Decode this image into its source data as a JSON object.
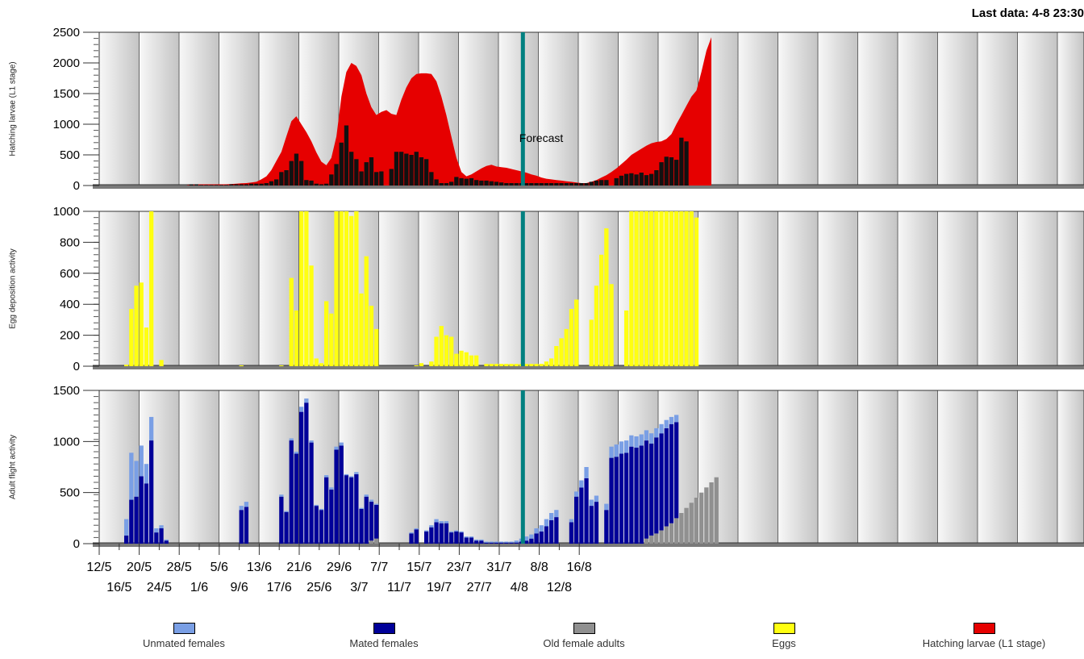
{
  "header": {
    "last_data": "Last data: 4-8 23:30"
  },
  "colors": {
    "unmated": "#7a9fe5",
    "mated": "#000099",
    "old": "#909090",
    "eggs": "#ffff11",
    "larvae_area": "#e60000",
    "larvae_bars": "#111111",
    "forecast_line": "#008080"
  },
  "legend": [
    {
      "label": "Unmated females",
      "color": "#7a9fe5"
    },
    {
      "label": "Mated females",
      "color": "#000099"
    },
    {
      "label": "Old female adults",
      "color": "#909090"
    },
    {
      "label": "Eggs",
      "color": "#ffff11"
    },
    {
      "label": "Hatching larvae (L1 stage)",
      "color": "#e60000"
    }
  ],
  "chart_data": [
    {
      "type": "area",
      "ylabel": "Hatching larvae (L1 stage)",
      "ylim": [
        0,
        2500
      ],
      "yticks": [
        "0",
        "500",
        "1000",
        "1500",
        "2000",
        "2500"
      ],
      "annotation": {
        "label": "Forecast",
        "date": "4/8"
      },
      "x_start": "12/5",
      "area_series": [
        0,
        0,
        0,
        0,
        0,
        0,
        0,
        0,
        0,
        0,
        0,
        0,
        0,
        0,
        0,
        0,
        0,
        0,
        20,
        20,
        20,
        20,
        20,
        20,
        20,
        20,
        25,
        30,
        35,
        40,
        50,
        60,
        100,
        150,
        250,
        400,
        550,
        800,
        1050,
        1130,
        1000,
        870,
        720,
        540,
        390,
        330,
        450,
        800,
        1450,
        1850,
        2000,
        1950,
        1800,
        1500,
        1280,
        1150,
        1200,
        1230,
        1170,
        1150,
        1400,
        1600,
        1750,
        1820,
        1830,
        1830,
        1820,
        1700,
        1450,
        1150,
        800,
        450,
        220,
        150,
        180,
        230,
        280,
        320,
        340,
        310,
        300,
        290,
        270,
        250,
        230,
        210,
        180,
        160,
        130,
        110,
        100,
        90,
        80,
        70,
        60,
        50,
        40,
        40,
        60,
        90,
        130,
        170,
        220,
        280,
        350,
        420,
        500,
        550,
        600,
        650,
        690,
        710,
        720,
        760,
        840,
        1000,
        1150,
        1300,
        1450,
        1550,
        1850,
        2200,
        2420
      ],
      "bar_values": [
        0,
        0,
        0,
        0,
        0,
        0,
        0,
        0,
        0,
        0,
        0,
        0,
        0,
        0,
        0,
        0,
        0,
        0,
        20,
        20,
        10,
        10,
        10,
        10,
        10,
        10,
        20,
        20,
        20,
        20,
        30,
        30,
        30,
        40,
        70,
        100,
        220,
        250,
        400,
        520,
        400,
        90,
        80,
        30,
        20,
        30,
        180,
        350,
        700,
        980,
        550,
        430,
        230,
        380,
        460,
        220,
        230,
        0,
        270,
        550,
        550,
        520,
        500,
        550,
        460,
        430,
        220,
        100,
        40,
        40,
        60,
        140,
        120,
        110,
        120,
        90,
        80,
        80,
        70,
        60,
        50,
        40,
        40,
        40,
        40,
        40,
        40,
        40,
        40,
        40,
        40,
        40,
        40,
        40,
        40,
        40,
        40,
        40,
        60,
        80,
        90,
        90,
        0,
        120,
        160,
        190,
        200,
        180,
        210,
        170,
        190,
        250,
        380,
        470,
        460,
        420,
        780,
        720
      ]
    },
    {
      "type": "bar",
      "ylabel": "Egg deposition activity",
      "ylim": [
        0,
        1000
      ],
      "yticks": [
        "0",
        "200",
        "400",
        "600",
        "800",
        "1000"
      ],
      "x_start": "12/5",
      "values": [
        0,
        0,
        0,
        0,
        0,
        10,
        370,
        520,
        540,
        250,
        1000,
        0,
        40,
        0,
        0,
        0,
        0,
        0,
        0,
        0,
        0,
        0,
        0,
        0,
        0,
        0,
        0,
        0,
        5,
        0,
        0,
        0,
        0,
        0,
        0,
        0,
        5,
        0,
        570,
        360,
        1000,
        1000,
        650,
        50,
        20,
        420,
        340,
        1000,
        1000,
        1000,
        970,
        1000,
        470,
        710,
        390,
        240,
        0,
        0,
        0,
        0,
        0,
        0,
        0,
        5,
        20,
        0,
        30,
        190,
        260,
        200,
        190,
        80,
        100,
        90,
        70,
        70,
        0,
        15,
        15,
        15,
        15,
        15,
        15,
        15,
        15,
        15,
        15,
        15,
        15,
        30,
        50,
        130,
        180,
        240,
        370,
        430,
        0,
        0,
        300,
        520,
        720,
        890,
        530,
        0,
        0,
        360,
        1000,
        1000,
        1000,
        1000,
        1000,
        1000,
        1000,
        1000,
        1000,
        1000,
        1000,
        1000,
        1000,
        960
      ]
    },
    {
      "type": "bar",
      "ylabel": "Adult flight activity",
      "ylim": [
        0,
        1500
      ],
      "yticks": [
        "0",
        "500",
        "1000",
        "1500"
      ],
      "x_ticks_row1": [
        "12/5",
        "20/5",
        "28/5",
        "5/6",
        "13/6",
        "21/6",
        "29/6",
        "7/7",
        "15/7",
        "23/7",
        "31/7",
        "8/8",
        "16/8"
      ],
      "x_ticks_row2": [
        "16/5",
        "24/5",
        "1/6",
        "9/6",
        "17/6",
        "25/6",
        "3/7",
        "11/7",
        "19/7",
        "27/7",
        "4/8",
        "12/8"
      ],
      "x_start": "12/5",
      "forecast_start": "4/8",
      "series": [
        {
          "name": "Old female adults",
          "values": [
            0,
            0,
            0,
            0,
            0,
            0,
            0,
            0,
            0,
            0,
            0,
            0,
            0,
            0,
            0,
            0,
            0,
            0,
            0,
            0,
            0,
            0,
            0,
            0,
            0,
            0,
            0,
            0,
            0,
            0,
            0,
            0,
            0,
            0,
            0,
            0,
            0,
            0,
            0,
            0,
            0,
            0,
            0,
            0,
            0,
            0,
            0,
            0,
            0,
            0,
            0,
            0,
            0,
            0,
            30,
            50,
            0,
            0,
            0,
            0,
            0,
            0,
            0,
            0,
            0,
            0,
            0,
            0,
            0,
            0,
            0,
            0,
            0,
            0,
            0,
            0,
            0,
            0,
            0,
            0,
            0,
            0,
            0,
            0,
            0,
            0,
            0,
            0,
            0,
            0,
            0,
            0,
            0,
            0,
            0,
            0,
            0,
            0,
            0,
            0,
            0,
            0,
            0,
            0,
            0,
            0,
            0,
            0,
            0,
            50,
            80,
            100,
            130,
            170,
            200,
            250,
            300,
            350,
            400,
            450,
            500,
            550,
            600,
            650
          ]
        },
        {
          "name": "Mated females",
          "values": [
            0,
            0,
            0,
            0,
            0,
            80,
            430,
            460,
            660,
            590,
            1010,
            110,
            150,
            30,
            0,
            0,
            0,
            0,
            0,
            0,
            0,
            0,
            0,
            0,
            0,
            0,
            0,
            0,
            330,
            360,
            0,
            0,
            0,
            0,
            0,
            0,
            460,
            310,
            1010,
            880,
            1290,
            1380,
            990,
            370,
            330,
            650,
            530,
            920,
            960,
            670,
            650,
            680,
            340,
            460,
            380,
            330,
            0,
            0,
            0,
            0,
            0,
            0,
            100,
            140,
            0,
            120,
            160,
            210,
            200,
            200,
            110,
            120,
            110,
            60,
            60,
            30,
            30,
            10,
            10,
            10,
            10,
            10,
            10,
            10,
            20,
            30,
            50,
            100,
            120,
            170,
            230,
            260,
            0,
            0,
            210,
            460,
            550,
            640,
            370,
            410,
            0,
            330,
            840,
            850,
            880,
            890,
            950,
            940,
            960,
            960,
            900,
            940,
            950,
            960,
            970,
            940
          ]
        },
        {
          "name": "Unmated females",
          "values": [
            0,
            0,
            0,
            0,
            0,
            160,
            460,
            350,
            300,
            190,
            230,
            40,
            30,
            10,
            0,
            0,
            0,
            0,
            0,
            0,
            0,
            0,
            0,
            0,
            0,
            0,
            0,
            0,
            40,
            50,
            0,
            0,
            0,
            0,
            0,
            0,
            20,
            10,
            20,
            20,
            50,
            40,
            20,
            10,
            10,
            20,
            20,
            30,
            30,
            10,
            10,
            20,
            10,
            20,
            20,
            10,
            0,
            0,
            0,
            0,
            0,
            0,
            10,
            10,
            0,
            10,
            20,
            30,
            20,
            20,
            10,
            10,
            10,
            10,
            10,
            10,
            10,
            10,
            10,
            10,
            10,
            10,
            10,
            20,
            30,
            40,
            40,
            50,
            60,
            70,
            70,
            70,
            0,
            0,
            30,
            50,
            70,
            110,
            60,
            60,
            0,
            60,
            110,
            120,
            120,
            120,
            110,
            110,
            110,
            100,
            100,
            90,
            90,
            80,
            70,
            70
          ]
        }
      ]
    }
  ]
}
